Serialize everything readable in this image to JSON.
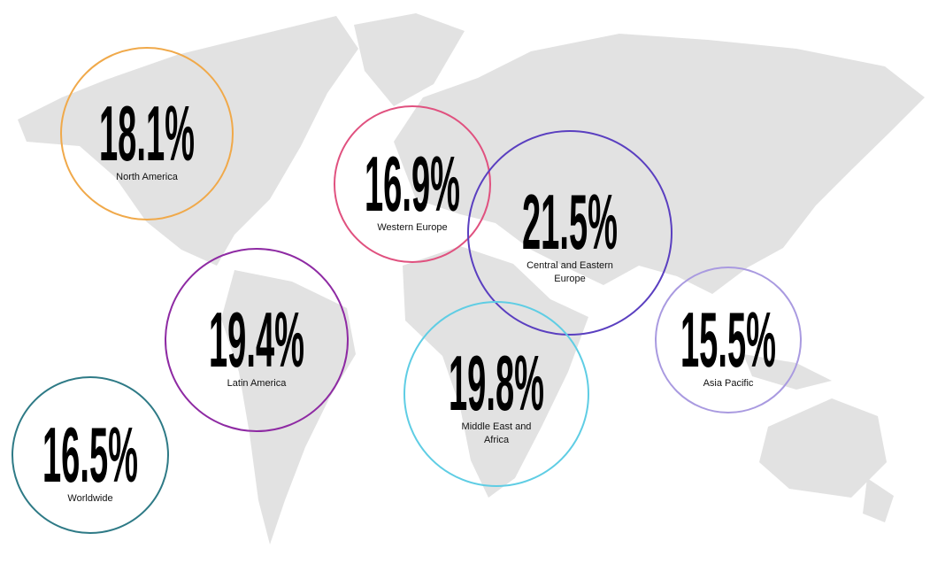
{
  "regions": [
    {
      "value": "18.1%",
      "label": [
        "North America"
      ],
      "color": "#f0a94a"
    },
    {
      "value": "16.9%",
      "label": [
        "Western Europe"
      ],
      "color": "#e0517f"
    },
    {
      "value": "21.5%",
      "label": [
        "Central and Eastern",
        "Europe"
      ],
      "color": "#5a3fc0"
    },
    {
      "value": "19.4%",
      "label": [
        "Latin America"
      ],
      "color": "#8e2aa3"
    },
    {
      "value": "19.8%",
      "label": [
        "Middle East and",
        "Africa"
      ],
      "color": "#5fcde4"
    },
    {
      "value": "15.5%",
      "label": [
        "Asia Pacific"
      ],
      "color": "#a99ae0"
    },
    {
      "value": "16.5%",
      "label": [
        "Worldwide"
      ],
      "color": "#2e7a86"
    }
  ]
}
